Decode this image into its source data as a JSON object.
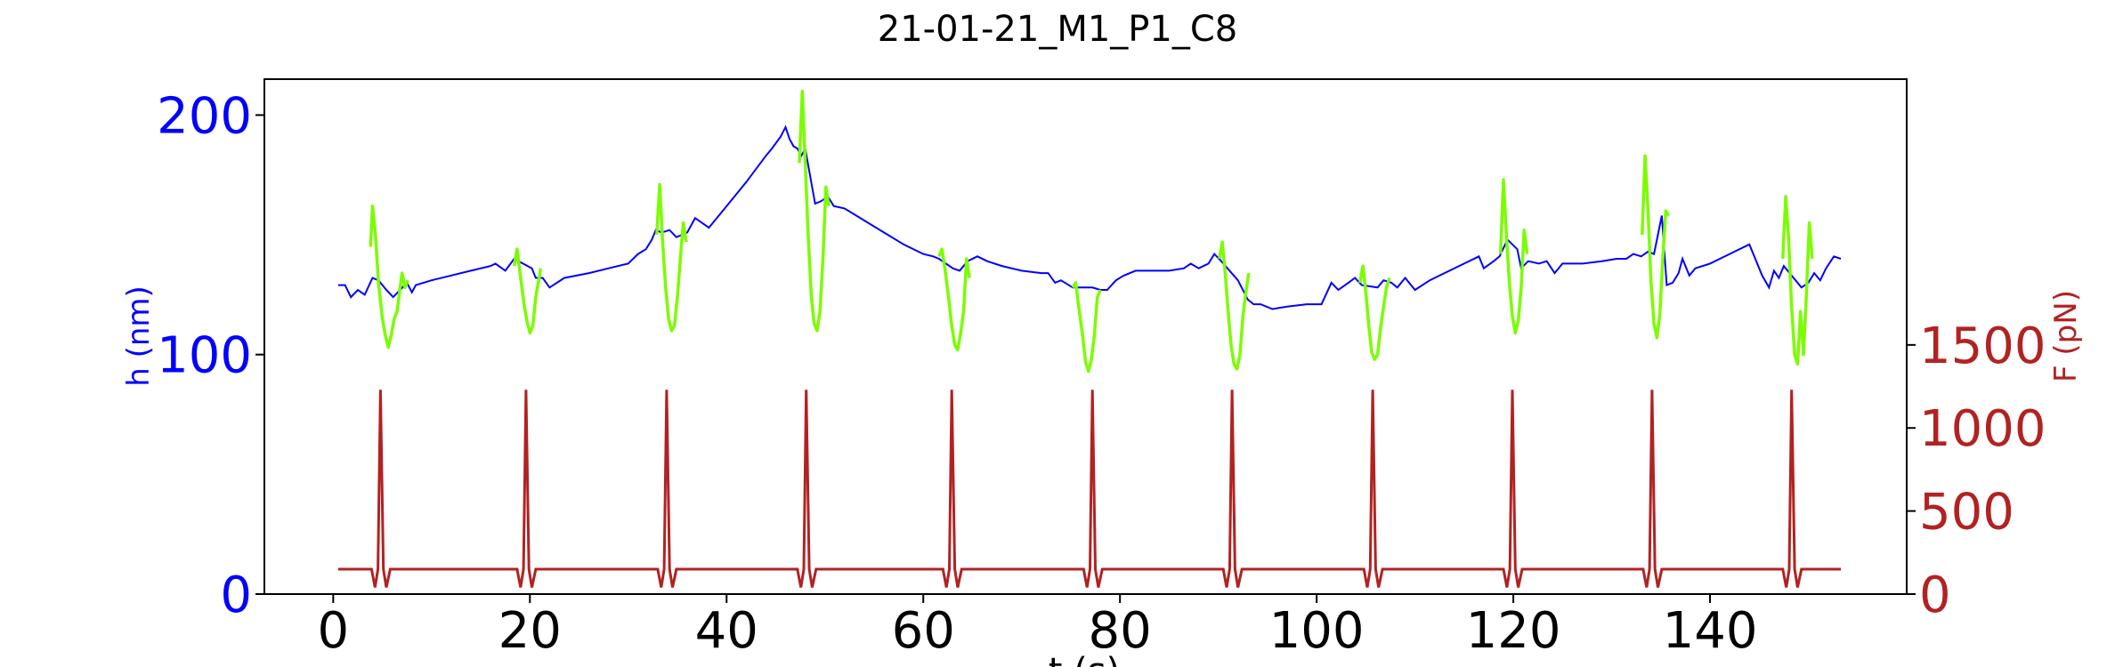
{
  "chart_data": {
    "type": "line",
    "title": "21-01-21_M1_P1_C8",
    "xlabel": "t (s)",
    "ylabel_left": "h (nm)",
    "ylabel_right": "F (pN)",
    "xlim": [
      -7,
      160
    ],
    "ylim_left": [
      0,
      215
    ],
    "ylim_right": [
      0,
      3100
    ],
    "grid": false,
    "colors": {
      "height": "#0000ff",
      "height_compression": "#7cfc00",
      "force": "#b22222",
      "left_axis": "#0000ff",
      "right_axis": "#b22222"
    },
    "x_ticks": [
      {
        "value": 0,
        "label": "0"
      },
      {
        "value": 20,
        "label": "20"
      },
      {
        "value": 40,
        "label": "40"
      },
      {
        "value": 60,
        "label": "60"
      },
      {
        "value": 80,
        "label": "80"
      },
      {
        "value": 100,
        "label": "100"
      },
      {
        "value": 120,
        "label": "120"
      },
      {
        "value": 140,
        "label": "140"
      }
    ],
    "y_left_ticks": [
      {
        "value": 0,
        "label": "0"
      },
      {
        "value": 100,
        "label": "100"
      },
      {
        "value": 200,
        "label": "200"
      }
    ],
    "y_right_ticks": [
      {
        "value": 0,
        "label": "0"
      },
      {
        "value": 500,
        "label": "500"
      },
      {
        "value": 1000,
        "label": "1000"
      },
      {
        "value": 1500,
        "label": "1500"
      }
    ],
    "series": [
      {
        "key": "h",
        "axis": "left",
        "values": [
          [
            0.5,
            129
          ],
          [
            1.2,
            129
          ],
          [
            1.8,
            124
          ],
          [
            2.5,
            127
          ],
          [
            3.2,
            125
          ],
          [
            4.0,
            132
          ],
          [
            4.6,
            131
          ],
          [
            5.4,
            127
          ],
          [
            6.1,
            124
          ],
          [
            6.8,
            127
          ],
          [
            7.5,
            130
          ],
          [
            8.0,
            126
          ],
          [
            8.4,
            129
          ],
          [
            10,
            131
          ],
          [
            12,
            133
          ],
          [
            14,
            135
          ],
          [
            16,
            137
          ],
          [
            16.5,
            138
          ],
          [
            17.5,
            135
          ],
          [
            18.4,
            140
          ],
          [
            20.2,
            136
          ],
          [
            20.6,
            132
          ],
          [
            21.3,
            132
          ],
          [
            22,
            128
          ],
          [
            23.5,
            132
          ],
          [
            26,
            134
          ],
          [
            28,
            136
          ],
          [
            30,
            138
          ],
          [
            31,
            142
          ],
          [
            31.8,
            144
          ],
          [
            32.4,
            148
          ],
          [
            32.8,
            152
          ],
          [
            33.4,
            151
          ],
          [
            34.2,
            152
          ],
          [
            34.9,
            149
          ],
          [
            36,
            151
          ],
          [
            36.8,
            157
          ],
          [
            37.5,
            155
          ],
          [
            38.2,
            153
          ],
          [
            40,
            162
          ],
          [
            42,
            172
          ],
          [
            44,
            183
          ],
          [
            44.6,
            186
          ],
          [
            45.5,
            191
          ],
          [
            46,
            195
          ],
          [
            46.4,
            190
          ],
          [
            46.8,
            187
          ],
          [
            47.2,
            186
          ],
          [
            47.6,
            183
          ],
          [
            48,
            186
          ],
          [
            49,
            163
          ],
          [
            49.6,
            164
          ],
          [
            50.3,
            166
          ],
          [
            50.9,
            162
          ],
          [
            52,
            161
          ],
          [
            54,
            156
          ],
          [
            56,
            151
          ],
          [
            58,
            146
          ],
          [
            60,
            142
          ],
          [
            61,
            141
          ],
          [
            61.6,
            140
          ],
          [
            63,
            136
          ],
          [
            63.7,
            135
          ],
          [
            64.5,
            139
          ],
          [
            65.5,
            141
          ],
          [
            66.5,
            139
          ],
          [
            68,
            137
          ],
          [
            70,
            135
          ],
          [
            72,
            134
          ],
          [
            72.7,
            134
          ],
          [
            73.4,
            130
          ],
          [
            74,
            131
          ],
          [
            75.2,
            128
          ],
          [
            77.2,
            128
          ],
          [
            78,
            127
          ],
          [
            78.7,
            127
          ],
          [
            79.6,
            131
          ],
          [
            80.4,
            133
          ],
          [
            81.6,
            135
          ],
          [
            83,
            135
          ],
          [
            85,
            135
          ],
          [
            86.5,
            136
          ],
          [
            87.2,
            138
          ],
          [
            88,
            136
          ],
          [
            89,
            138
          ],
          [
            89.6,
            142
          ],
          [
            90.3,
            139
          ],
          [
            92,
            131
          ],
          [
            93,
            123
          ],
          [
            93.6,
            121
          ],
          [
            94.3,
            121
          ],
          [
            95.5,
            119
          ],
          [
            97,
            120
          ],
          [
            99,
            121
          ],
          [
            100.5,
            121
          ],
          [
            101.5,
            130
          ],
          [
            102.2,
            127
          ],
          [
            102.9,
            129
          ],
          [
            103.9,
            132
          ],
          [
            104.6,
            129
          ],
          [
            106.2,
            128
          ],
          [
            106.8,
            131
          ],
          [
            107.6,
            130
          ],
          [
            108.2,
            128
          ],
          [
            109,
            132
          ],
          [
            110,
            127
          ],
          [
            111.5,
            131
          ],
          [
            113,
            134
          ],
          [
            115,
            138
          ],
          [
            116.5,
            141
          ],
          [
            117,
            136
          ],
          [
            118,
            139
          ],
          [
            118.6,
            141
          ],
          [
            119.4,
            148
          ],
          [
            120.4,
            144
          ],
          [
            120.8,
            136
          ],
          [
            121.5,
            139
          ],
          [
            122.6,
            138
          ],
          [
            123.4,
            139
          ],
          [
            124.2,
            134
          ],
          [
            125,
            138
          ],
          [
            127,
            138
          ],
          [
            129,
            139
          ],
          [
            130.5,
            140
          ],
          [
            131.5,
            140
          ],
          [
            132.2,
            142
          ],
          [
            133,
            141
          ],
          [
            133.7,
            143
          ],
          [
            134.3,
            142
          ],
          [
            135.1,
            158
          ],
          [
            135.6,
            129
          ],
          [
            136.2,
            130
          ],
          [
            136.8,
            134
          ],
          [
            137.2,
            140
          ],
          [
            137.9,
            133
          ],
          [
            138.5,
            136
          ],
          [
            140,
            138
          ],
          [
            142,
            142
          ],
          [
            144,
            146
          ],
          [
            145.3,
            133
          ],
          [
            146,
            128
          ],
          [
            146.5,
            135
          ],
          [
            147,
            132
          ],
          [
            147.5,
            137
          ],
          [
            149.3,
            128
          ],
          [
            150,
            130
          ],
          [
            150.6,
            134
          ],
          [
            151.2,
            131
          ],
          [
            151.8,
            136
          ],
          [
            152.6,
            141
          ],
          [
            153.3,
            140
          ]
        ]
      },
      {
        "key": "h_compression",
        "axis": "left",
        "segments": [
          [
            [
              3.8,
              145
            ],
            [
              4.0,
              162
            ],
            [
              4.3,
              150
            ],
            [
              4.6,
              130
            ],
            [
              5.0,
              115
            ],
            [
              5.3,
              108
            ],
            [
              5.6,
              103
            ],
            [
              5.9,
              108
            ],
            [
              6.2,
              115
            ],
            [
              6.5,
              118
            ],
            [
              6.8,
              128
            ],
            [
              7.0,
              134
            ],
            [
              7.3,
              128
            ],
            [
              7.6,
              131
            ]
          ],
          [
            [
              18.4,
              137
            ],
            [
              18.7,
              144
            ],
            [
              19.0,
              134
            ],
            [
              19.4,
              121
            ],
            [
              19.7,
              114
            ],
            [
              20.0,
              109
            ],
            [
              20.3,
              112
            ],
            [
              20.6,
              124
            ],
            [
              20.9,
              131
            ],
            [
              21.1,
              136
            ]
          ],
          [
            [
              32.9,
              150
            ],
            [
              33.2,
              171
            ],
            [
              33.5,
              147
            ],
            [
              33.8,
              128
            ],
            [
              34.1,
              115
            ],
            [
              34.4,
              110
            ],
            [
              34.7,
              112
            ],
            [
              35.0,
              124
            ],
            [
              35.3,
              140
            ],
            [
              35.6,
              155
            ],
            [
              35.9,
              147
            ]
          ],
          [
            [
              47.4,
              180
            ],
            [
              47.7,
              210
            ],
            [
              48.0,
              180
            ],
            [
              48.3,
              150
            ],
            [
              48.6,
              125
            ],
            [
              48.9,
              113
            ],
            [
              49.2,
              110
            ],
            [
              49.5,
              118
            ],
            [
              49.8,
              140
            ],
            [
              50.1,
              170
            ],
            [
              50.4,
              162
            ]
          ],
          [
            [
              61.6,
              141
            ],
            [
              61.9,
              144
            ],
            [
              62.2,
              136
            ],
            [
              62.6,
              123
            ],
            [
              62.9,
              112
            ],
            [
              63.2,
              104
            ],
            [
              63.5,
              102
            ],
            [
              63.8,
              109
            ],
            [
              64.1,
              118
            ],
            [
              64.4,
              140
            ],
            [
              64.7,
              132
            ]
          ],
          [
            [
              75.2,
              128
            ],
            [
              75.5,
              130
            ],
            [
              75.8,
              120
            ],
            [
              76.2,
              108
            ],
            [
              76.5,
              97
            ],
            [
              76.8,
              93
            ],
            [
              77.1,
              98
            ],
            [
              77.4,
              108
            ],
            [
              77.7,
              124
            ],
            [
              78.0,
              127
            ]
          ],
          [
            [
              90.1,
              140
            ],
            [
              90.4,
              147
            ],
            [
              90.7,
              134
            ],
            [
              91.0,
              118
            ],
            [
              91.3,
              104
            ],
            [
              91.6,
              96
            ],
            [
              91.9,
              94
            ],
            [
              92.2,
              100
            ],
            [
              92.5,
              116
            ],
            [
              92.8,
              126
            ],
            [
              93.1,
              134
            ]
          ],
          [
            [
              104.4,
              130
            ],
            [
              104.7,
              137
            ],
            [
              105.0,
              126
            ],
            [
              105.3,
              112
            ],
            [
              105.6,
              101
            ],
            [
              105.9,
              98
            ],
            [
              106.2,
              100
            ],
            [
              106.5,
              111
            ],
            [
              106.8,
              120
            ],
            [
              107.1,
              128
            ],
            [
              107.4,
              132
            ]
          ],
          [
            [
              118.7,
              142
            ],
            [
              119.0,
              173
            ],
            [
              119.3,
              149
            ],
            [
              119.6,
              130
            ],
            [
              119.9,
              116
            ],
            [
              120.2,
              109
            ],
            [
              120.5,
              114
            ],
            [
              120.8,
              128
            ],
            [
              121.1,
              152
            ],
            [
              121.4,
              142
            ]
          ],
          [
            [
              133.1,
              150
            ],
            [
              133.4,
              183
            ],
            [
              133.7,
              160
            ],
            [
              134.0,
              130
            ],
            [
              134.3,
              113
            ],
            [
              134.6,
              107
            ],
            [
              134.9,
              117
            ],
            [
              135.2,
              140
            ],
            [
              135.5,
              160
            ],
            [
              135.8,
              158
            ]
          ],
          [
            [
              147.4,
              140
            ],
            [
              147.7,
              166
            ],
            [
              148.0,
              148
            ],
            [
              148.3,
              120
            ],
            [
              148.6,
              100
            ],
            [
              148.9,
              96
            ],
            [
              149.2,
              118
            ],
            [
              149.5,
              100
            ],
            [
              149.8,
              125
            ],
            [
              150.1,
              155
            ],
            [
              150.4,
              140
            ]
          ]
        ]
      },
      {
        "key": "F",
        "axis": "right",
        "peaks": [
          4.8,
          19.6,
          33.9,
          48.1,
          62.9,
          77.2,
          91.4,
          105.7,
          119.9,
          134.1,
          148.3
        ],
        "baseline": 150,
        "peak_value": 1230,
        "dip_value": 40,
        "t_start": 0.5,
        "t_end": 153.3
      }
    ]
  }
}
